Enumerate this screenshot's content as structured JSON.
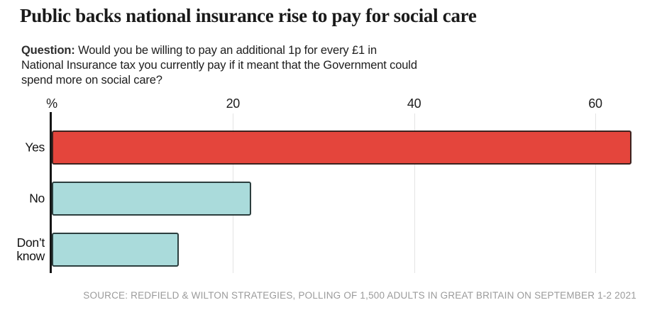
{
  "header": {
    "title": "Public backs national insurance rise to pay for social care"
  },
  "question": {
    "prefix": "Question:",
    "lines": [
      "Would you be willing to pay an additional 1p for every £1 in",
      "National Insurance tax you currently pay if it meant that the Government could",
      "spend more on social care?"
    ]
  },
  "chart_data": {
    "type": "bar",
    "orientation": "horizontal",
    "title": "Public backs national insurance rise to pay for social care",
    "unit_label": "%",
    "categories": [
      "Yes",
      "No",
      "Don’t know"
    ],
    "values": [
      64,
      22,
      14
    ],
    "xlim": [
      0,
      65.8
    ],
    "ticks": [
      20,
      40,
      60
    ],
    "grid": true,
    "legend": "none",
    "bar_colors": [
      "#e4453c",
      "#aadbdb",
      "#aadbdb"
    ],
    "bar_border_colors": [
      "#3d2320",
      "#2c3e3e",
      "#2c3e3e"
    ]
  },
  "source": {
    "text": "SOURCE: REDFIELD & WILTON STRATEGIES, POLLING OF 1,500 ADULTS IN GREAT BRITAIN ON SEPTEMBER 1-2 2021"
  },
  "colors": {
    "accent_red": "#e4453c",
    "teal": "#aadbdb",
    "axis": "#161616",
    "gridline": "#e4e4e4",
    "title_text": "#1a1a1a",
    "body_text": "#1d1d1d",
    "source_text": "#9b9b9b"
  }
}
